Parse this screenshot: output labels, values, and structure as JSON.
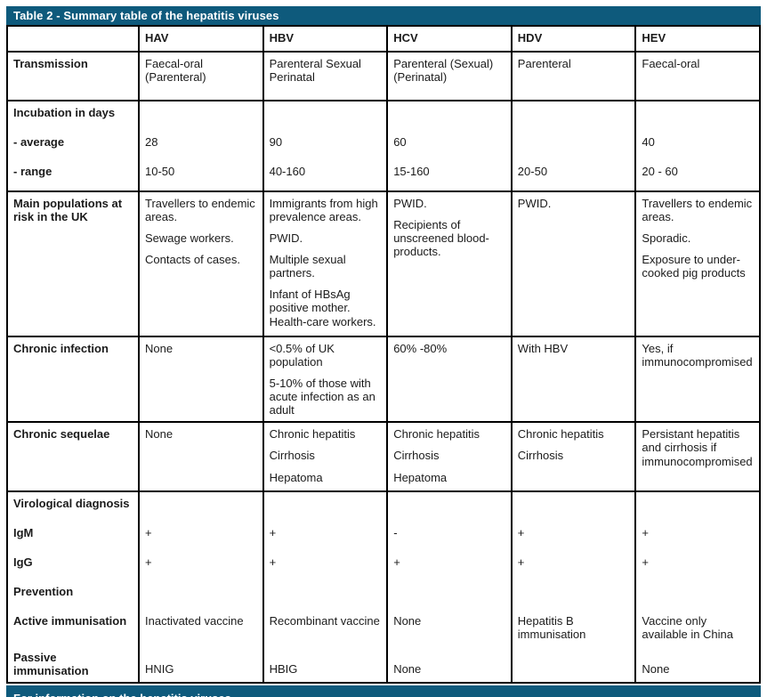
{
  "title_bar": {
    "label": "Table 2 - Summary table of the hepatitis viruses"
  },
  "bottom_bar": {
    "label": "For information on the hepatitis viruses"
  },
  "colors": {
    "accent_teal": "#0e5a7c",
    "border_black": "#000000",
    "body_text": "#1b1b1b",
    "bar_text": "#ffffff"
  },
  "table": {
    "columns": [
      "",
      "HAV",
      "HBV",
      "HCV",
      "HDV",
      "HEV"
    ],
    "rows": [
      {
        "type": "paras",
        "name": "transmission",
        "label": "Transmission",
        "cells": [
          [
            "Faecal-oral (Parenteral)"
          ],
          [
            "Parenteral Sexual Perinatal"
          ],
          [
            "Parenteral (Sexual) (Perinatal)"
          ],
          [
            "Parenteral"
          ],
          [
            "Faecal-oral"
          ]
        ]
      },
      {
        "type": "sublines",
        "name": "incubation",
        "sub_rows": [
          {
            "label": "Incubation in days",
            "values": [
              "",
              "",
              "",
              "",
              ""
            ]
          },
          {
            "label": "- average",
            "values": [
              "28",
              "90",
              "60",
              "",
              "40"
            ]
          },
          {
            "label": "- range",
            "values": [
              "10-50",
              "40-160",
              "15-160",
              "20-50",
              "20 - 60"
            ]
          }
        ]
      },
      {
        "type": "paras",
        "name": "populations",
        "label": "Main populations at risk in the UK",
        "cells": [
          [
            "Travellers to endemic areas.",
            "Sewage workers.",
            "Contacts of cases."
          ],
          [
            "Immigrants from high prevalence areas.",
            "PWID.",
            "Multiple sexual partners.",
            "Infant of HBsAg positive mother. Health-care workers."
          ],
          [
            "PWID.",
            "Recipients of unscreened blood-products."
          ],
          [
            "PWID."
          ],
          [
            "Travellers to endemic areas.",
            "Sporadic.",
            "Exposure to under-cooked pig products"
          ]
        ]
      },
      {
        "type": "paras",
        "name": "chronic-infection",
        "label": "Chronic infection",
        "cells": [
          [
            "None"
          ],
          [
            "<0.5% of UK population",
            "5-10% of those with acute infection as an adult"
          ],
          [
            "60% -80%"
          ],
          [
            "With HBV"
          ],
          [
            "Yes, if immunocompromised"
          ]
        ]
      },
      {
        "type": "paras",
        "name": "chronic-sequelae",
        "label": "Chronic sequelae",
        "cells": [
          [
            "None"
          ],
          [
            "Chronic hepatitis",
            "Cirrhosis",
            "Hepatoma"
          ],
          [
            "Chronic hepatitis",
            "Cirrhosis",
            "Hepatoma"
          ],
          [
            "Chronic hepatitis",
            "Cirrhosis"
          ],
          [
            "Persistant hepatitis and cirrhosis if immunocompromised"
          ]
        ]
      },
      {
        "type": "sublines",
        "name": "diagnosis",
        "sub_rows": [
          {
            "label": "Virological diagnosis",
            "values": [
              "",
              "",
              "",
              "",
              ""
            ]
          },
          {
            "label": "IgM",
            "values": [
              "+",
              "+",
              "-",
              "+",
              "+"
            ]
          },
          {
            "label": "IgG",
            "values": [
              "+",
              "+",
              "+",
              "+",
              "+"
            ]
          },
          {
            "label": "Prevention",
            "values": [
              "",
              "",
              "",
              "",
              ""
            ]
          },
          {
            "label": "Active immunisation",
            "values": [
              "Inactivated vaccine",
              "Recombinant vaccine",
              "None",
              "Hepatitis B immunisation",
              "Vaccine only available in China"
            ]
          },
          {
            "label": "Passive immunisation",
            "values": [
              "HNIG",
              "HBIG",
              "None",
              "",
              "None"
            ]
          }
        ]
      }
    ]
  }
}
